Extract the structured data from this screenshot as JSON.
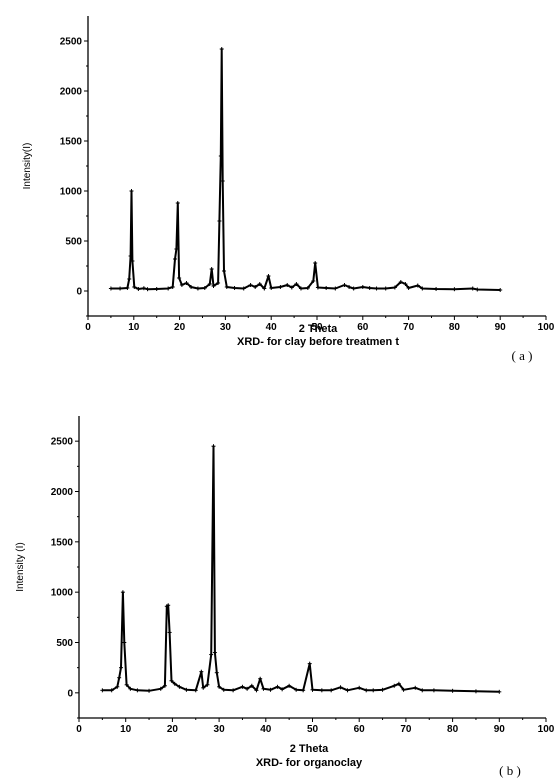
{
  "chart_data": [
    {
      "type": "line",
      "panel_label": "( a )",
      "xlabel": "2 Theta",
      "caption": "XRD- for clay before treatmen t",
      "ylabel": "Intensity(I)",
      "xlim": [
        0,
        100
      ],
      "ylim": [
        -250,
        2750
      ],
      "x_ticks": [
        0,
        10,
        20,
        30,
        40,
        50,
        60,
        70,
        80,
        90,
        100
      ],
      "y_ticks": [
        0,
        500,
        1000,
        1500,
        2000,
        2500
      ],
      "grid": false,
      "series": [
        {
          "values": [
            [
              5,
              25
            ],
            [
              7,
              25
            ],
            [
              8.6,
              30
            ],
            [
              9.0,
              120
            ],
            [
              9.3,
              350
            ],
            [
              9.5,
              1000
            ],
            [
              9.7,
              300
            ],
            [
              10.1,
              40
            ],
            [
              11,
              20
            ],
            [
              12.2,
              28
            ],
            [
              13,
              18
            ],
            [
              15,
              20
            ],
            [
              17.5,
              25
            ],
            [
              18.5,
              40
            ],
            [
              19.0,
              320
            ],
            [
              19.3,
              420
            ],
            [
              19.6,
              880
            ],
            [
              19.9,
              130
            ],
            [
              20.5,
              60
            ],
            [
              21.5,
              80
            ],
            [
              22.5,
              40
            ],
            [
              24,
              25
            ],
            [
              25.5,
              30
            ],
            [
              26.6,
              70
            ],
            [
              27.0,
              220
            ],
            [
              27.4,
              50
            ],
            [
              28.4,
              80
            ],
            [
              28.7,
              700
            ],
            [
              29.0,
              1350
            ],
            [
              29.2,
              2420
            ],
            [
              29.4,
              1100
            ],
            [
              29.7,
              200
            ],
            [
              30.3,
              40
            ],
            [
              32,
              30
            ],
            [
              34,
              25
            ],
            [
              35.5,
              60
            ],
            [
              36.5,
              40
            ],
            [
              37.5,
              70
            ],
            [
              38.5,
              25
            ],
            [
              39.4,
              150
            ],
            [
              40,
              30
            ],
            [
              42,
              40
            ],
            [
              43.5,
              60
            ],
            [
              44.5,
              35
            ],
            [
              45.5,
              70
            ],
            [
              46.5,
              25
            ],
            [
              48,
              30
            ],
            [
              49.2,
              100
            ],
            [
              49.6,
              280
            ],
            [
              50.2,
              35
            ],
            [
              52,
              30
            ],
            [
              54,
              25
            ],
            [
              56,
              60
            ],
            [
              57,
              40
            ],
            [
              58,
              25
            ],
            [
              60,
              40
            ],
            [
              61.5,
              30
            ],
            [
              63,
              25
            ],
            [
              65,
              25
            ],
            [
              67,
              35
            ],
            [
              68.3,
              90
            ],
            [
              69.3,
              70
            ],
            [
              70,
              30
            ],
            [
              72,
              55
            ],
            [
              73,
              25
            ],
            [
              76,
              20
            ],
            [
              80,
              18
            ],
            [
              84,
              25
            ],
            [
              85,
              15
            ],
            [
              90,
              10
            ]
          ]
        }
      ]
    },
    {
      "type": "line",
      "panel_label": "( b )",
      "xlabel": "2 Theta",
      "caption": "XRD- for organoclay",
      "ylabel": "Intensity (I)",
      "xlim": [
        0,
        100
      ],
      "ylim": [
        -250,
        2750
      ],
      "x_ticks": [
        0,
        10,
        20,
        30,
        40,
        50,
        60,
        70,
        80,
        90,
        100
      ],
      "y_ticks": [
        0,
        500,
        1000,
        1500,
        2000,
        2500
      ],
      "grid": false,
      "series": [
        {
          "values": [
            [
              5,
              25
            ],
            [
              7,
              25
            ],
            [
              8.2,
              60
            ],
            [
              8.6,
              150
            ],
            [
              9.0,
              250
            ],
            [
              9.4,
              1000
            ],
            [
              9.7,
              500
            ],
            [
              10.2,
              80
            ],
            [
              11,
              40
            ],
            [
              12.5,
              25
            ],
            [
              15,
              20
            ],
            [
              17.5,
              40
            ],
            [
              18.4,
              70
            ],
            [
              18.8,
              860
            ],
            [
              19.1,
              870
            ],
            [
              19.4,
              600
            ],
            [
              19.8,
              120
            ],
            [
              20.5,
              90
            ],
            [
              21.5,
              60
            ],
            [
              23,
              30
            ],
            [
              25,
              25
            ],
            [
              26.2,
              210
            ],
            [
              26.6,
              50
            ],
            [
              27.5,
              80
            ],
            [
              28.3,
              380
            ],
            [
              28.8,
              2450
            ],
            [
              29.1,
              400
            ],
            [
              29.5,
              200
            ],
            [
              30,
              60
            ],
            [
              31,
              30
            ],
            [
              33,
              25
            ],
            [
              35,
              60
            ],
            [
              36,
              40
            ],
            [
              37,
              70
            ],
            [
              38,
              25
            ],
            [
              38.8,
              140
            ],
            [
              39.5,
              40
            ],
            [
              41,
              30
            ],
            [
              42.5,
              60
            ],
            [
              43.5,
              35
            ],
            [
              45,
              70
            ],
            [
              46.5,
              30
            ],
            [
              48,
              25
            ],
            [
              49.4,
              290
            ],
            [
              50,
              30
            ],
            [
              52,
              25
            ],
            [
              54,
              25
            ],
            [
              56,
              55
            ],
            [
              57.5,
              25
            ],
            [
              60,
              50
            ],
            [
              61.5,
              25
            ],
            [
              63,
              25
            ],
            [
              65,
              30
            ],
            [
              67.5,
              70
            ],
            [
              68.5,
              90
            ],
            [
              69.5,
              30
            ],
            [
              72,
              50
            ],
            [
              73.5,
              25
            ],
            [
              76,
              25
            ],
            [
              80,
              20
            ],
            [
              85,
              15
            ],
            [
              90,
              10
            ]
          ]
        }
      ]
    }
  ]
}
